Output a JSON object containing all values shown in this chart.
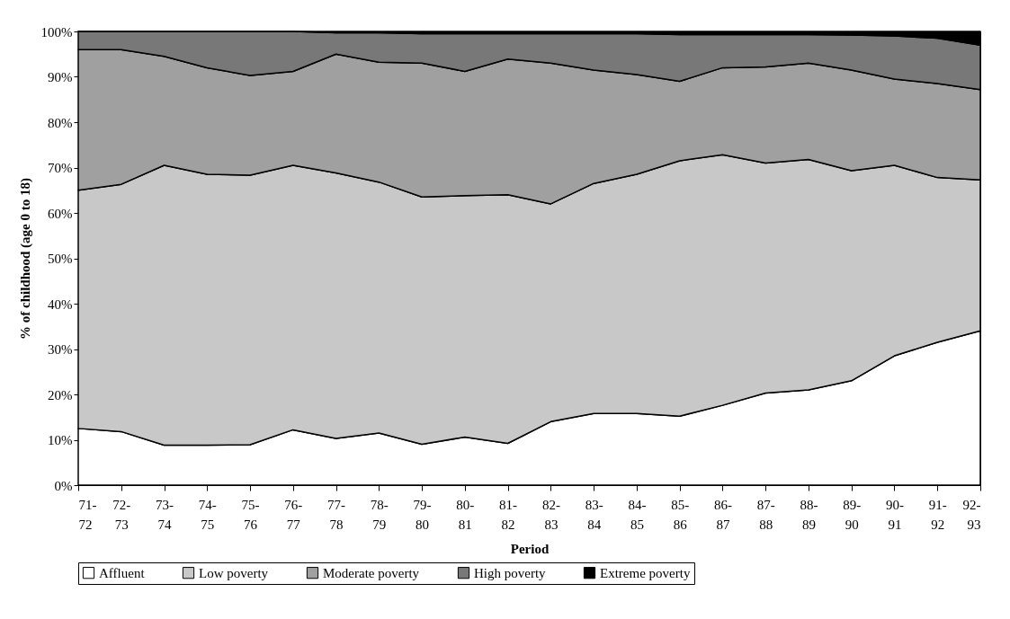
{
  "chart_data": {
    "type": "area",
    "stacked": true,
    "xlabel": "Period",
    "ylabel": "% of childhood (age 0 to 18)",
    "categories": [
      "71-72",
      "72-73",
      "73-74",
      "74-75",
      "75-76",
      "76-77",
      "77-78",
      "78-79",
      "79-80",
      "80-81",
      "81-82",
      "82-83",
      "83-84",
      "84-85",
      "85-86",
      "86-87",
      "87-88",
      "88-89",
      "89-90",
      "90-91",
      "91-92",
      "92-93"
    ],
    "series": [
      {
        "name": "Affluent",
        "color": "#ffffff",
        "values": [
          12.5,
          11.8,
          8.8,
          8.8,
          8.9,
          12.2,
          10.3,
          11.5,
          9,
          10.6,
          9.2,
          14,
          15.8,
          15.8,
          15.2,
          17.6,
          20.3,
          21,
          23,
          28.5,
          31.5,
          34
        ]
      },
      {
        "name": "Low poverty",
        "color": "#c8c8c8",
        "values": [
          52.5,
          54.5,
          61.7,
          59.7,
          59.4,
          58.3,
          58.5,
          55.3,
          54.5,
          53.2,
          54.8,
          48,
          50.7,
          52.7,
          56.3,
          55.2,
          50.7,
          50.8,
          46.3,
          42,
          36.3,
          33.3
        ]
      },
      {
        "name": "Moderate poverty",
        "color": "#a0a0a0",
        "values": [
          31,
          29.7,
          24,
          23.5,
          22,
          20.7,
          26.2,
          26.4,
          29.5,
          27.4,
          29.9,
          31,
          25,
          22,
          17.5,
          19.2,
          21.2,
          21.2,
          22.2,
          19,
          20.7,
          19.9
        ]
      },
      {
        "name": "High poverty",
        "color": "#787878",
        "values": [
          4,
          4,
          5.5,
          8,
          9.7,
          8.8,
          4.7,
          6.5,
          6.5,
          8.3,
          5.6,
          6.5,
          8,
          9,
          10.3,
          7.3,
          7.1,
          6.3,
          7.7,
          9.5,
          10,
          9.8
        ]
      },
      {
        "name": "Extreme poverty",
        "color": "#000000",
        "values": [
          0,
          0,
          0,
          0,
          0,
          0,
          0.3,
          0.3,
          0.5,
          0.5,
          0.5,
          0.5,
          0.5,
          0.5,
          0.7,
          0.7,
          0.7,
          0.7,
          0.8,
          1,
          1.5,
          3
        ]
      }
    ],
    "ylim": [
      0,
      100
    ],
    "yticks": [
      {
        "value": 0,
        "label": "0%"
      },
      {
        "value": 10,
        "label": "10%"
      },
      {
        "value": 20,
        "label": "20%"
      },
      {
        "value": 30,
        "label": "30%"
      },
      {
        "value": 40,
        "label": "40%"
      },
      {
        "value": 50,
        "label": "50%"
      },
      {
        "value": 60,
        "label": "60%"
      },
      {
        "value": 70,
        "label": "70%"
      },
      {
        "value": 80,
        "label": "80%"
      },
      {
        "value": 90,
        "label": "90%"
      },
      {
        "value": 100,
        "label": "100%"
      }
    ],
    "legend": "bottom"
  }
}
